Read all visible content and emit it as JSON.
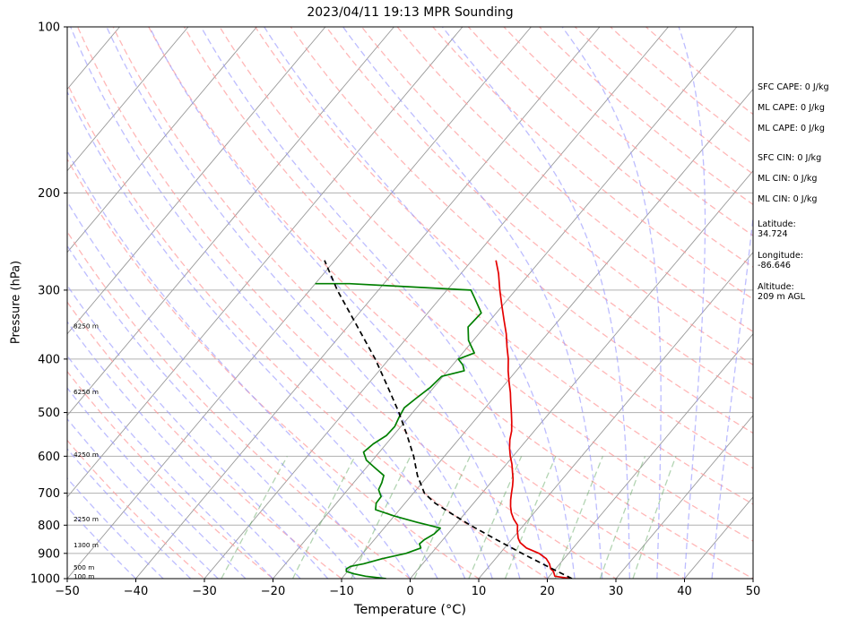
{
  "chart_data": {
    "type": "line",
    "title": "2023/04/11 19:13 MPR Sounding",
    "xlabel": "Temperature (°C)",
    "ylabel": "Pressure (hPa)",
    "xlim": [
      -50,
      50
    ],
    "ylim": [
      1000,
      100
    ],
    "y_scale": "log",
    "skew": "skew-T",
    "x_ticks": [
      "−50",
      "−40",
      "−30",
      "−20",
      "−10",
      "0",
      "10",
      "20",
      "30",
      "40",
      "50"
    ],
    "x_tick_values": [
      -50,
      -40,
      -30,
      -20,
      -10,
      0,
      10,
      20,
      30,
      40,
      50
    ],
    "y_ticks": [
      "100",
      "200",
      "300",
      "400",
      "500",
      "600",
      "700",
      "800",
      "900",
      "1000"
    ],
    "y_tick_values": [
      100,
      200,
      300,
      400,
      500,
      600,
      700,
      800,
      900,
      1000
    ],
    "grid": true,
    "series": [
      {
        "key": "temperature",
        "color": "#e50000",
        "points": [
          [
            1000,
            23.5
          ],
          [
            990,
            20.8
          ],
          [
            970,
            20.0
          ],
          [
            960,
            19.3
          ],
          [
            940,
            18.5
          ],
          [
            920,
            17.4
          ],
          [
            900,
            15.7
          ],
          [
            880,
            13.2
          ],
          [
            860,
            11.6
          ],
          [
            845,
            10.8
          ],
          [
            820,
            9.8
          ],
          [
            800,
            9.1
          ],
          [
            780,
            7.8
          ],
          [
            760,
            6.7
          ],
          [
            740,
            5.8
          ],
          [
            720,
            5.0
          ],
          [
            700,
            4.3
          ],
          [
            680,
            3.6
          ],
          [
            660,
            2.8
          ],
          [
            640,
            1.8
          ],
          [
            620,
            0.8
          ],
          [
            600,
            -0.4
          ],
          [
            580,
            -1.5
          ],
          [
            560,
            -2.5
          ],
          [
            540,
            -3.3
          ],
          [
            520,
            -4.4
          ],
          [
            500,
            -5.6
          ],
          [
            480,
            -6.9
          ],
          [
            460,
            -8.2
          ],
          [
            440,
            -9.7
          ],
          [
            420,
            -11.2
          ],
          [
            400,
            -12.6
          ],
          [
            380,
            -14.3
          ],
          [
            360,
            -16.0
          ],
          [
            340,
            -18.0
          ],
          [
            320,
            -20.1
          ],
          [
            300,
            -22.3
          ],
          [
            280,
            -24.5
          ],
          [
            265,
            -26.5
          ]
        ]
      },
      {
        "key": "dewpoint",
        "color": "#007f00",
        "points": [
          [
            1000,
            -3.5
          ],
          [
            990,
            -6.8
          ],
          [
            980,
            -8.8
          ],
          [
            970,
            -10.2
          ],
          [
            960,
            -10.5
          ],
          [
            950,
            -10.2
          ],
          [
            940,
            -8.6
          ],
          [
            920,
            -6.5
          ],
          [
            900,
            -3.7
          ],
          [
            880,
            -2.2
          ],
          [
            865,
            -2.9
          ],
          [
            850,
            -2.7
          ],
          [
            830,
            -2.0
          ],
          [
            810,
            -1.8
          ],
          [
            790,
            -6.0
          ],
          [
            770,
            -10.0
          ],
          [
            750,
            -13.5
          ],
          [
            730,
            -14.2
          ],
          [
            710,
            -14.3
          ],
          [
            690,
            -15.5
          ],
          [
            670,
            -15.9
          ],
          [
            650,
            -16.5
          ],
          [
            630,
            -18.7
          ],
          [
            610,
            -20.9
          ],
          [
            590,
            -22.3
          ],
          [
            570,
            -21.9
          ],
          [
            550,
            -21.0
          ],
          [
            530,
            -20.9
          ],
          [
            510,
            -21.4
          ],
          [
            490,
            -21.8
          ],
          [
            470,
            -21.2
          ],
          [
            450,
            -20.5
          ],
          [
            430,
            -20.2
          ],
          [
            420,
            -17.6
          ],
          [
            410,
            -18.5
          ],
          [
            400,
            -19.9
          ],
          [
            390,
            -18.3
          ],
          [
            370,
            -20.7
          ],
          [
            350,
            -22.4
          ],
          [
            330,
            -22.2
          ],
          [
            310,
            -25.0
          ],
          [
            300,
            -26.5
          ],
          [
            295,
            -38.0
          ],
          [
            292,
            -45.0
          ],
          [
            292,
            -50.0
          ]
        ]
      },
      {
        "key": "parcel",
        "color": "#000000",
        "points": [
          [
            1000,
            23.6
          ],
          [
            950,
            18.5
          ],
          [
            900,
            13.2
          ],
          [
            850,
            7.8
          ],
          [
            800,
            2.2
          ],
          [
            760,
            -2.2
          ],
          [
            730,
            -5.6
          ],
          [
            700,
            -8.4
          ],
          [
            650,
            -11.6
          ],
          [
            600,
            -14.5
          ],
          [
            550,
            -18.0
          ],
          [
            500,
            -22.0
          ],
          [
            450,
            -26.7
          ],
          [
            400,
            -32.0
          ],
          [
            350,
            -38.5
          ],
          [
            300,
            -46.0
          ],
          [
            265,
            -51.5
          ]
        ]
      }
    ],
    "height_labels": [
      {
        "text": "100 m",
        "p": 988
      },
      {
        "text": "500 m",
        "p": 952
      },
      {
        "text": "1300 m",
        "p": 868
      },
      {
        "text": "2250 m",
        "p": 778
      },
      {
        "text": "4250 m",
        "p": 595
      },
      {
        "text": "6250 m",
        "p": 458
      },
      {
        "text": "8250 m",
        "p": 348
      }
    ],
    "background_lines": {
      "isotherm_color": "#999999",
      "dry_adiabat_color": "#ff9999",
      "moist_adiabat_color": "#9999ff",
      "mixing_ratio_color": "#66aa66"
    }
  },
  "side_panel": {
    "items": [
      "SFC CAPE: 0 J/kg",
      "ML CAPE: 0 J/kg",
      "ML CAPE: 0 J/kg",
      "SFC CIN: 0 J/kg",
      "ML CIN: 0 J/kg",
      "ML CIN: 0 J/kg",
      "Latitude:",
      "34.724",
      "Longitude:",
      "-86.646",
      "Altitude:",
      "209 m AGL"
    ]
  }
}
